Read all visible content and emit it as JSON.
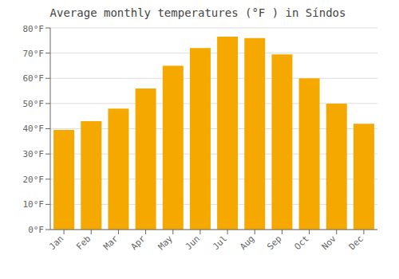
{
  "chart_data": {
    "type": "bar",
    "title": "Average monthly temperatures (°F ) in Síndos",
    "categories": [
      "Jan",
      "Feb",
      "Mar",
      "Apr",
      "May",
      "Jun",
      "Jul",
      "Aug",
      "Sep",
      "Oct",
      "Nov",
      "Dec"
    ],
    "values": [
      39.5,
      43.0,
      48.0,
      56.0,
      65.0,
      72.0,
      76.5,
      76.0,
      69.5,
      60.0,
      50.0,
      42.0
    ],
    "color": "#F5A800",
    "ylim": [
      0,
      80
    ],
    "yticks": [
      {
        "value": 0,
        "label": "0°F"
      },
      {
        "value": 10,
        "label": "10°F"
      },
      {
        "value": 20,
        "label": "20°F"
      },
      {
        "value": 30,
        "label": "30°F"
      },
      {
        "value": 40,
        "label": "40°F"
      },
      {
        "value": 50,
        "label": "50°F"
      },
      {
        "value": 60,
        "label": "60°F"
      },
      {
        "value": 70,
        "label": "70°F"
      },
      {
        "value": 80,
        "label": "80°F"
      }
    ],
    "grid": true
  }
}
